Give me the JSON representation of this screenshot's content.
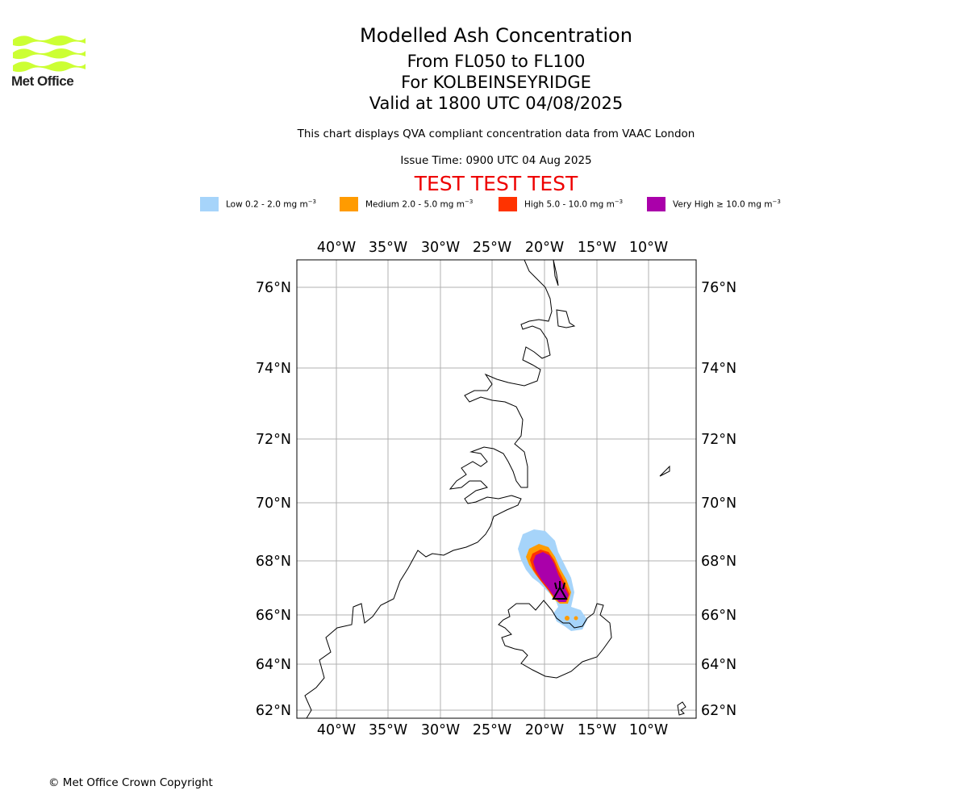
{
  "logo": {
    "text": "Met Office",
    "wave_color": "#ccff33"
  },
  "titles": {
    "main": "Modelled Ash Concentration",
    "levels": "From FL050 to FL100",
    "volcano": "For KOLBEINSEYRIDGE",
    "valid": "Valid at 1800 UTC 04/08/2025",
    "note": "This chart displays QVA compliant concentration data from VAAC London",
    "issue": "Issue Time: 0900 UTC 04 Aug 2025",
    "test": "TEST TEST TEST"
  },
  "legend": [
    {
      "label": "Low 0.2 - 2.0 mg m",
      "unit_exp": "−3",
      "color": "#a6d4fa"
    },
    {
      "label": "Medium 2.0 - 5.0 mg m",
      "unit_exp": "−3",
      "color": "#ff9b00"
    },
    {
      "label": "High 5.0 - 10.0 mg m",
      "unit_exp": "−3",
      "color": "#ff3300"
    },
    {
      "label": "Very High ≥ 10.0 mg m",
      "unit_exp": "−3",
      "color": "#aa00aa"
    }
  ],
  "axes": {
    "lon_labels": [
      "40°W",
      "35°W",
      "30°W",
      "25°W",
      "20°W",
      "15°W",
      "10°W"
    ],
    "lat_labels": [
      "76°N",
      "74°N",
      "72°N",
      "70°N",
      "68°N",
      "66°N",
      "64°N",
      "62°N"
    ],
    "grid": true
  },
  "map": {
    "volcano_symbol": "volcano-icon",
    "coastline_color": "#000000",
    "gridline_color": "#b0b0b0"
  },
  "footer": {
    "copyright": "© Met Office Crown Copyright"
  }
}
